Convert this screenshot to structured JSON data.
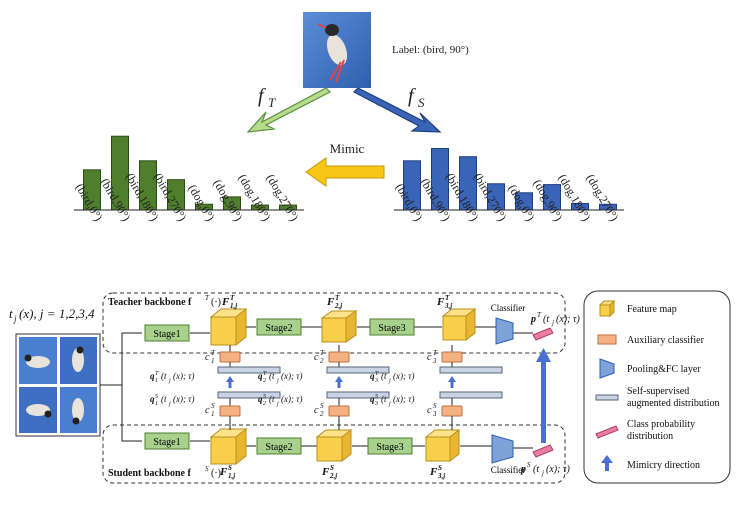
{
  "top": {
    "label": "Label: (bird, 90°)",
    "f_teacher": "f",
    "f_teacher_sub": "T",
    "f_student": "f",
    "f_student_sub": "S",
    "mimic": "Mimic",
    "colors": {
      "teacher": "#4f7f2c",
      "student": "#3a64b8",
      "mimic": "#f7c617",
      "teacher_arrow": "#b5dc8e",
      "student_arrow": "#3a64b8"
    }
  },
  "chart_data": [
    {
      "type": "bar",
      "name": "teacher",
      "categories": [
        "(bird,0°)",
        "(bird,90°)",
        "(bird,180°)",
        "(bird,270°)",
        "(dog,0°)",
        "(dog,90°)",
        "(dog,180°)",
        "(dog,270°)"
      ],
      "values": [
        0.49,
        0.9,
        0.6,
        0.37,
        0.07,
        0.16,
        0.06,
        0.06
      ],
      "ylim": [
        0,
        1
      ]
    },
    {
      "type": "bar",
      "name": "student",
      "categories": [
        "(bird,0°)",
        "(bird,90°)",
        "(bird,180°)",
        "(bird,270°)",
        "(dog,0°)",
        "(dog,90°)",
        "(dog,180°)",
        "(dog,270°)"
      ],
      "values": [
        0.6,
        0.75,
        0.65,
        0.32,
        0.21,
        0.31,
        0.08,
        0.07
      ],
      "ylim": [
        0,
        1
      ]
    }
  ],
  "bottom": {
    "input_label": "t",
    "input_rest": "(x), j = 1,2,3,4",
    "teacher_backbone": "Teacher backbone f",
    "teacher_backbone_sup": "T",
    "teacher_backbone_arg": "(·)",
    "student_backbone": "Student backbone f",
    "student_backbone_sup": "S",
    "student_backbone_arg": "(·)",
    "stages": [
      "Stage1",
      "Stage2",
      "Stage3"
    ],
    "classifier": "Classifier",
    "teacher_feats": [
      "F",
      "F",
      "F"
    ],
    "teacher_feat_sup": "T",
    "teacher_feat_subs": [
      "1,j",
      "2,j",
      "3,j"
    ],
    "student_feats": [
      "F",
      "F",
      "F"
    ],
    "student_feat_sup": "S",
    "student_feat_subs": [
      "1,j",
      "2,j",
      "3,j"
    ],
    "aux_teacher": [
      "c",
      "c",
      "c"
    ],
    "aux_teacher_sup": "T",
    "aux_subs": [
      "1",
      "2",
      "3"
    ],
    "aux_student": [
      "c",
      "c",
      "c"
    ],
    "aux_student_sup": "S",
    "q_teacher": [
      "q",
      "q",
      "q"
    ],
    "q_teacher_sup": "T",
    "q_student_sup": "S",
    "q_arg": "(t",
    "q_arg_sub": "j",
    "q_arg_rest": "(x); τ)",
    "p_teacher": "p",
    "p_teacher_sup": "T",
    "p_student": "p",
    "p_student_sup": "S",
    "p_arg": "(t",
    "p_arg_rest": "(x); τ)"
  },
  "legend": {
    "items": [
      {
        "icon": "feature-map",
        "label": "Feature map"
      },
      {
        "icon": "auxiliary-classifier",
        "label": "Auxiliary classifier"
      },
      {
        "icon": "pooling-fc",
        "label": "Pooling&FC layer"
      },
      {
        "icon": "self-supervised-distribution",
        "label": "Self-supervised",
        "label2": "augmented distribution"
      },
      {
        "icon": "class-probability",
        "label": "Class probability",
        "label2": "distribution"
      },
      {
        "icon": "mimicry-direction",
        "label": "Mimicry direction"
      }
    ]
  }
}
